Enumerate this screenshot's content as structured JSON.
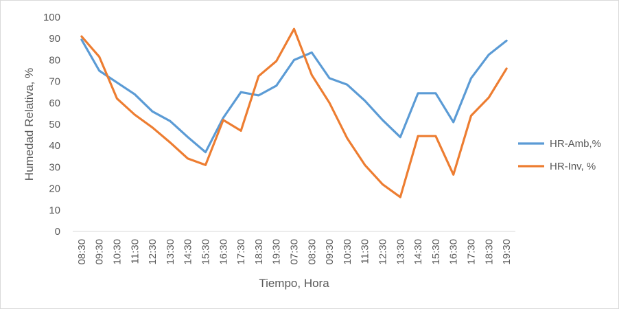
{
  "chart_data": {
    "type": "line",
    "title": "",
    "xlabel": "Tiempo, Hora",
    "ylabel": "Humedad Relativa, %",
    "ylim": [
      0,
      100
    ],
    "yticks": [
      0,
      10,
      20,
      30,
      40,
      50,
      60,
      70,
      80,
      90,
      100
    ],
    "grid": false,
    "legend_position": "right",
    "categories": [
      "08:30",
      "09:30",
      "10:30",
      "11:30",
      "12:30",
      "13:30",
      "14:30",
      "15:30",
      "16:30",
      "17:30",
      "18:30",
      "19:30",
      "07:30",
      "08:30",
      "09:30",
      "10:30",
      "11:30",
      "12:30",
      "13:30",
      "14:30",
      "15:30",
      "16:30",
      "17:30",
      "18:30",
      "19:30"
    ],
    "series": [
      {
        "name": "HR-Amb,%",
        "color": "#5b9bd5",
        "values": [
          89.5,
          75,
          69.5,
          64,
          56,
          51.5,
          44,
          37,
          53,
          65,
          63.5,
          68,
          80,
          83.5,
          71.5,
          68.5,
          61,
          52,
          44,
          64.5,
          64.5,
          51,
          71.5,
          82.5,
          89
        ]
      },
      {
        "name": "HR-Inv, %",
        "color": "#ed7d31",
        "values": [
          91,
          81.5,
          62,
          54.5,
          48.5,
          41.5,
          34,
          31,
          52,
          47,
          72.5,
          79.5,
          94.5,
          73,
          60,
          43.5,
          31,
          22,
          16,
          44.5,
          44.5,
          26.5,
          54,
          62.5,
          76
        ]
      }
    ]
  }
}
